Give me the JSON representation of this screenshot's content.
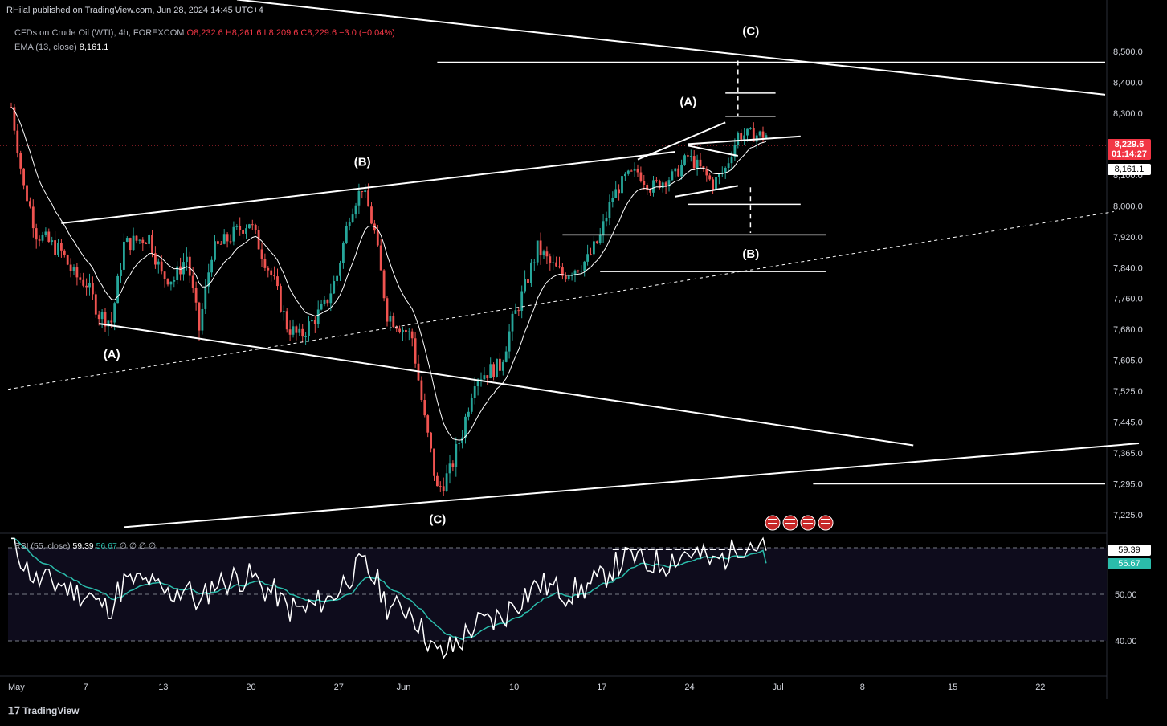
{
  "header": {
    "publisher": "RHilal published on TradingView.com, Jun 28, 2024 14:45 UTC+4",
    "symbol": "CFDs on Crude Oil (WTI), 4h, FOREXCOM",
    "ohlc": "O8,232.6 H8,261.6 L8,209.6 C8,229.6 −3.0 (−0.04%)",
    "ema_label": "EMA (13, close)",
    "ema_value": "8,161.1",
    "rsi_label": "RSI (55, close)",
    "rsi_value": "59.39",
    "rsi_ma_value": "56.67",
    "rsi_extra": "∅ ∅ ∅ ∅"
  },
  "brand": "TradingView",
  "price_tags": {
    "last": "8,229.6",
    "countdown": "01:14:27",
    "ema": "8,161.1",
    "rsi": "59.39",
    "rsi_ma": "56.67"
  },
  "colors": {
    "background": "#000000",
    "up": "#26a69a",
    "down": "#ef5350",
    "lines": "#ffffff",
    "rsi": "#ffffff",
    "rsi_ma": "#2bbcab",
    "axis_text": "#d1d4dc",
    "last_price": "#f23645"
  },
  "wave_labels": [
    {
      "text": "(A)",
      "date": "May 9",
      "price": 7610
    },
    {
      "text": "(B)",
      "date": "May 29",
      "price": 8130
    },
    {
      "text": "(C)",
      "date": "Jun 4",
      "price": 7205
    },
    {
      "text": "(A)",
      "date": "Jun 24",
      "price": 8325
    },
    {
      "text": "(C)",
      "date": "Jun 29",
      "price": 8548
    },
    {
      "text": "(B)",
      "date": "Jun 29",
      "price": 7865
    }
  ],
  "chart_data": {
    "type": "candlestick",
    "title": "",
    "price_axis": {
      "ticks": [
        "8,500.0",
        "8,400.0",
        "8,300.0",
        "8,200.0",
        "8,100.0",
        "8,000.0",
        "7,920.0",
        "7,840.0",
        "7,760.0",
        "7,680.0",
        "7,605.0",
        "7,525.0",
        "7,445.0",
        "7,365.0",
        "7,295.0",
        "7,225.0"
      ],
      "values": [
        8500,
        8400,
        8300,
        8200,
        8100,
        8000,
        7920,
        7840,
        7760,
        7680,
        7605,
        7525,
        7445,
        7365,
        7295,
        7225
      ]
    },
    "time_axis": {
      "labels": [
        "May",
        "7",
        "13",
        "20",
        "27",
        "Jun",
        "10",
        "17",
        "24",
        "Jul",
        "8",
        "15",
        "22"
      ]
    },
    "rsi_axis": {
      "ticks": [
        "50.00",
        "40.00"
      ]
    },
    "close_path": [
      [
        "May 1",
        8320
      ],
      [
        "May 2",
        8060
      ],
      [
        "May 3",
        7930
      ],
      [
        "May 5",
        7880
      ],
      [
        "May 6",
        7820
      ],
      [
        "May 7",
        7800
      ],
      [
        "May 8",
        7720
      ],
      [
        "May 9",
        7700
      ],
      [
        "May 10",
        7900
      ],
      [
        "May 12",
        7920
      ],
      [
        "May 13",
        7820
      ],
      [
        "May 14",
        7810
      ],
      [
        "May 15",
        7870
      ],
      [
        "May 16",
        7680
      ],
      [
        "May 17",
        7880
      ],
      [
        "May 20",
        7960
      ],
      [
        "May 21",
        7880
      ],
      [
        "May 22",
        7800
      ],
      [
        "May 23",
        7690
      ],
      [
        "May 24",
        7660
      ],
      [
        "May 26",
        7740
      ],
      [
        "May 27",
        7820
      ],
      [
        "May 28",
        7980
      ],
      [
        "May 29",
        8060
      ],
      [
        "May 30",
        7930
      ],
      [
        "May 31",
        7720
      ],
      [
        "Jun 2",
        7660
      ],
      [
        "Jun 3",
        7450
      ],
      [
        "Jun 4",
        7280
      ],
      [
        "Jun 5",
        7320
      ],
      [
        "Jun 6",
        7420
      ],
      [
        "Jun 7",
        7560
      ],
      [
        "Jun 9",
        7590
      ],
      [
        "Jun 10",
        7700
      ],
      [
        "Jun 11",
        7790
      ],
      [
        "Jun 12",
        7890
      ],
      [
        "Jun 13",
        7850
      ],
      [
        "Jun 14",
        7820
      ],
      [
        "Jun 16",
        7860
      ],
      [
        "Jun 17",
        7920
      ],
      [
        "Jun 18",
        8030
      ],
      [
        "Jun 19",
        8090
      ],
      [
        "Jun 20",
        8110
      ],
      [
        "Jun 21",
        8060
      ],
      [
        "Jun 23",
        8100
      ],
      [
        "Jun 24",
        8160
      ],
      [
        "Jun 25",
        8120
      ],
      [
        "Jun 26",
        8070
      ],
      [
        "Jun 27",
        8120
      ],
      [
        "Jun 28",
        8229.6
      ]
    ],
    "ema": {
      "name": "EMA (13, close)",
      "last": 8161.1
    },
    "rsi": {
      "name": "RSI (55, close)",
      "last": 59.39,
      "ma_last": 56.67
    },
    "last_price": 8229.6
  }
}
